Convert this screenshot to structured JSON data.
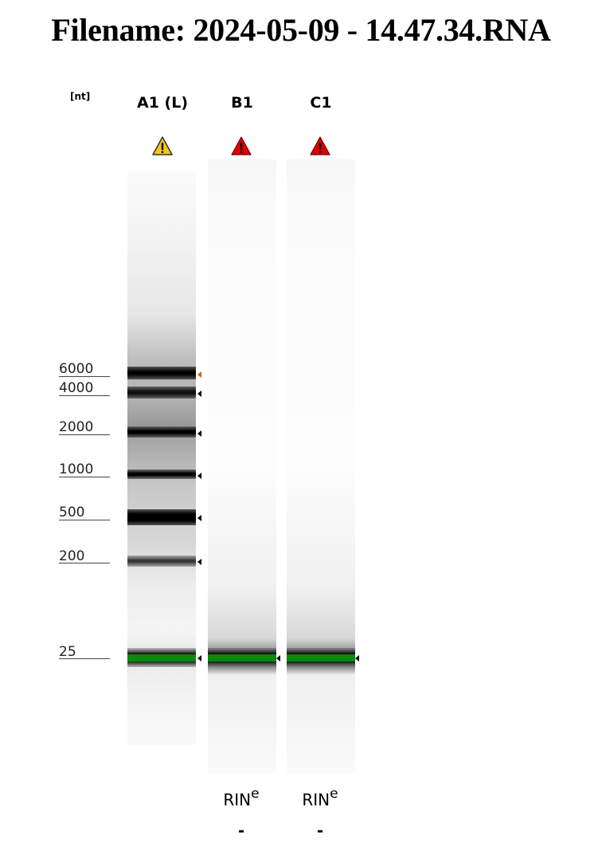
{
  "title": "Filename: 2024-05-09 - 14.47.34.RNA",
  "unit_label": "[nt]",
  "lanes": [
    {
      "name": "A1 (L)",
      "warning": "yellow-warning-icon",
      "warning_color": "#F5C518"
    },
    {
      "name": "B1",
      "warning": "red-warning-icon",
      "warning_color": "#E00000"
    },
    {
      "name": "C1",
      "warning": "red-warning-icon",
      "warning_color": "#E00000"
    }
  ],
  "ladder": [
    "6000",
    "4000",
    "2000",
    "1000",
    "500",
    "200",
    "25"
  ],
  "marker_color": "#00AA00",
  "rin": [
    {
      "label": "RIN",
      "sup": "e",
      "value": "-"
    },
    {
      "label": "RIN",
      "sup": "e",
      "value": "-"
    }
  ]
}
